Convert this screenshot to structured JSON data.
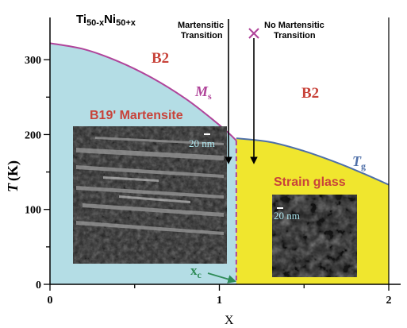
{
  "chart_data": {
    "type": "phase-diagram",
    "title": "Ti50-xNi50+x",
    "title_parts": {
      "base1": "Ti",
      "sub1": "50-x",
      "base2": "Ni",
      "sub2": "50+x"
    },
    "xlabel": "X",
    "ylabel_symbol": "T",
    "ylabel_unit": "(K)",
    "xlim": [
      0,
      2
    ],
    "ylim": [
      0,
      350
    ],
    "x_ticks": [
      {
        "value": 0,
        "label": "0"
      },
      {
        "value": 0.5,
        "label": ""
      },
      {
        "value": 1,
        "label": "1"
      },
      {
        "value": 1.5,
        "label": ""
      },
      {
        "value": 2,
        "label": "2"
      }
    ],
    "y_ticks": [
      {
        "value": 0,
        "label": "0"
      },
      {
        "value": 50,
        "label": ""
      },
      {
        "value": 100,
        "label": "100"
      },
      {
        "value": 150,
        "label": ""
      },
      {
        "value": 200,
        "label": "200"
      },
      {
        "value": 250,
        "label": ""
      },
      {
        "value": 300,
        "label": "300"
      }
    ],
    "xc": 1.1,
    "ms_curve": {
      "label": "M",
      "sub": "s",
      "color": "#b0449a",
      "points": [
        [
          0,
          322
        ],
        [
          0.2,
          314
        ],
        [
          0.4,
          298
        ],
        [
          0.6,
          276
        ],
        [
          0.8,
          248
        ],
        [
          0.95,
          222
        ],
        [
          1.05,
          203
        ],
        [
          1.1,
          192
        ]
      ]
    },
    "tg_curve": {
      "label": "T",
      "sub": "g",
      "color": "#4e6fa8",
      "points": [
        [
          1.1,
          195
        ],
        [
          1.3,
          190
        ],
        [
          1.5,
          178
        ],
        [
          1.7,
          162
        ],
        [
          1.85,
          148
        ],
        [
          2.0,
          133
        ]
      ]
    },
    "regions": [
      {
        "name": "martensite",
        "color": "#b4dde5"
      },
      {
        "name": "strain-glass",
        "color": "#f0e62e"
      }
    ],
    "region_labels": {
      "b2_left": "B2",
      "b2_right": "B2",
      "martensite": "B19' Martensite",
      "strain_glass": "Strain glass"
    },
    "annotations": {
      "martensitic_line1": "Martensitic",
      "martensitic_line2": "Transition",
      "no_martensitic_line1": "No Martensitic",
      "no_martensitic_line2": "Transition",
      "xc_base": "x",
      "xc_sub": "c"
    },
    "scale_bar_label_1": "20 nm",
    "scale_bar_label_2": "20 nm",
    "colors": {
      "label_red": "#c8433a",
      "arrow_green": "#2e8b57",
      "axis": "#000000"
    }
  }
}
